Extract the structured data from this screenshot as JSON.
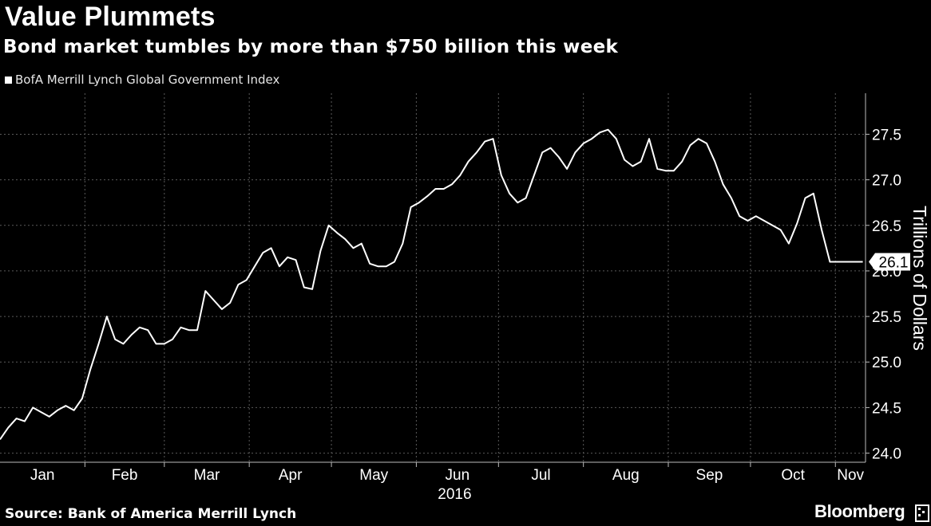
{
  "chart_data": {
    "type": "line",
    "title": "Value Plummets",
    "subtitle": "Bond market tumbles by more than $750 billion this week",
    "ylabel": "Trillions of Dollars",
    "xlabel": "2016",
    "ylim": [
      23.9,
      27.95
    ],
    "yticks": [
      24.0,
      24.5,
      25.0,
      25.5,
      26.0,
      26.5,
      27.0,
      27.5
    ],
    "ytick_labels": [
      "24.0",
      "24.5",
      "25.0",
      "25.5",
      "26.0",
      "26.5",
      "27.0",
      "27.5"
    ],
    "xticks": [
      "Jan",
      "Feb",
      "Mar",
      "Apr",
      "May",
      "Jun",
      "Jul",
      "Aug",
      "Sep",
      "Oct",
      "Nov"
    ],
    "grid": true,
    "legend_position": "top-left",
    "last_value_label": "26.1",
    "series": [
      {
        "name": "BofA Merrill Lynch Global Government Index",
        "color": "#ffffff",
        "x": [
          "2016-01-01",
          "2016-01-04",
          "2016-01-07",
          "2016-01-10",
          "2016-01-13",
          "2016-01-16",
          "2016-01-19",
          "2016-01-22",
          "2016-01-25",
          "2016-01-28",
          "2016-01-31",
          "2016-02-03",
          "2016-02-06",
          "2016-02-09",
          "2016-02-12",
          "2016-02-15",
          "2016-02-18",
          "2016-02-21",
          "2016-02-24",
          "2016-02-27",
          "2016-03-01",
          "2016-03-04",
          "2016-03-07",
          "2016-03-10",
          "2016-03-13",
          "2016-03-16",
          "2016-03-19",
          "2016-03-22",
          "2016-03-25",
          "2016-03-28",
          "2016-03-31",
          "2016-04-03",
          "2016-04-06",
          "2016-04-09",
          "2016-04-12",
          "2016-04-15",
          "2016-04-18",
          "2016-04-21",
          "2016-04-24",
          "2016-04-27",
          "2016-04-30",
          "2016-05-03",
          "2016-05-06",
          "2016-05-09",
          "2016-05-12",
          "2016-05-15",
          "2016-05-18",
          "2016-05-21",
          "2016-05-24",
          "2016-05-27",
          "2016-05-30",
          "2016-06-02",
          "2016-06-05",
          "2016-06-08",
          "2016-06-11",
          "2016-06-14",
          "2016-06-17",
          "2016-06-20",
          "2016-06-23",
          "2016-06-26",
          "2016-06-29",
          "2016-07-02",
          "2016-07-05",
          "2016-07-08",
          "2016-07-11",
          "2016-07-14",
          "2016-07-17",
          "2016-07-20",
          "2016-07-23",
          "2016-07-26",
          "2016-07-29",
          "2016-08-01",
          "2016-08-04",
          "2016-08-07",
          "2016-08-10",
          "2016-08-13",
          "2016-08-16",
          "2016-08-19",
          "2016-08-22",
          "2016-08-25",
          "2016-08-28",
          "2016-08-31",
          "2016-09-03",
          "2016-09-06",
          "2016-09-09",
          "2016-09-12",
          "2016-09-15",
          "2016-09-18",
          "2016-09-21",
          "2016-09-24",
          "2016-09-27",
          "2016-09-30",
          "2016-10-03",
          "2016-10-06",
          "2016-10-09",
          "2016-10-12",
          "2016-10-15",
          "2016-10-18",
          "2016-10-21",
          "2016-10-24",
          "2016-10-27",
          "2016-10-30",
          "2016-11-02",
          "2016-11-05",
          "2016-11-08",
          "2016-11-11"
        ],
        "values": [
          24.15,
          24.28,
          24.38,
          24.35,
          24.5,
          24.45,
          24.4,
          24.47,
          24.52,
          24.47,
          24.6,
          24.92,
          25.2,
          25.5,
          25.25,
          25.2,
          25.3,
          25.38,
          25.35,
          25.2,
          25.2,
          25.25,
          25.38,
          25.35,
          25.35,
          25.78,
          25.68,
          25.58,
          25.65,
          25.85,
          25.9,
          26.05,
          26.2,
          26.25,
          26.05,
          26.15,
          26.12,
          25.82,
          25.8,
          26.22,
          26.5,
          26.42,
          26.35,
          26.25,
          26.3,
          26.08,
          26.05,
          26.05,
          26.1,
          26.3,
          26.7,
          26.75,
          26.82,
          26.9,
          26.9,
          26.95,
          27.05,
          27.2,
          27.3,
          27.42,
          27.45,
          27.05,
          26.85,
          26.75,
          26.8,
          27.05,
          27.3,
          27.35,
          27.25,
          27.12,
          27.3,
          27.4,
          27.45,
          27.52,
          27.55,
          27.45,
          27.22,
          27.15,
          27.2,
          27.45,
          27.12,
          27.1,
          27.1,
          27.2,
          27.38,
          27.45,
          27.4,
          27.2,
          26.95,
          26.8,
          26.6,
          26.55,
          26.6,
          26.55,
          26.5,
          26.45,
          26.3,
          26.52,
          26.8,
          26.85,
          26.45,
          26.1,
          26.1,
          26.1,
          26.1,
          26.1
        ]
      }
    ]
  },
  "footer": {
    "source": "Source: Bank of America Merrill Lynch",
    "brand": "Bloomberg"
  }
}
